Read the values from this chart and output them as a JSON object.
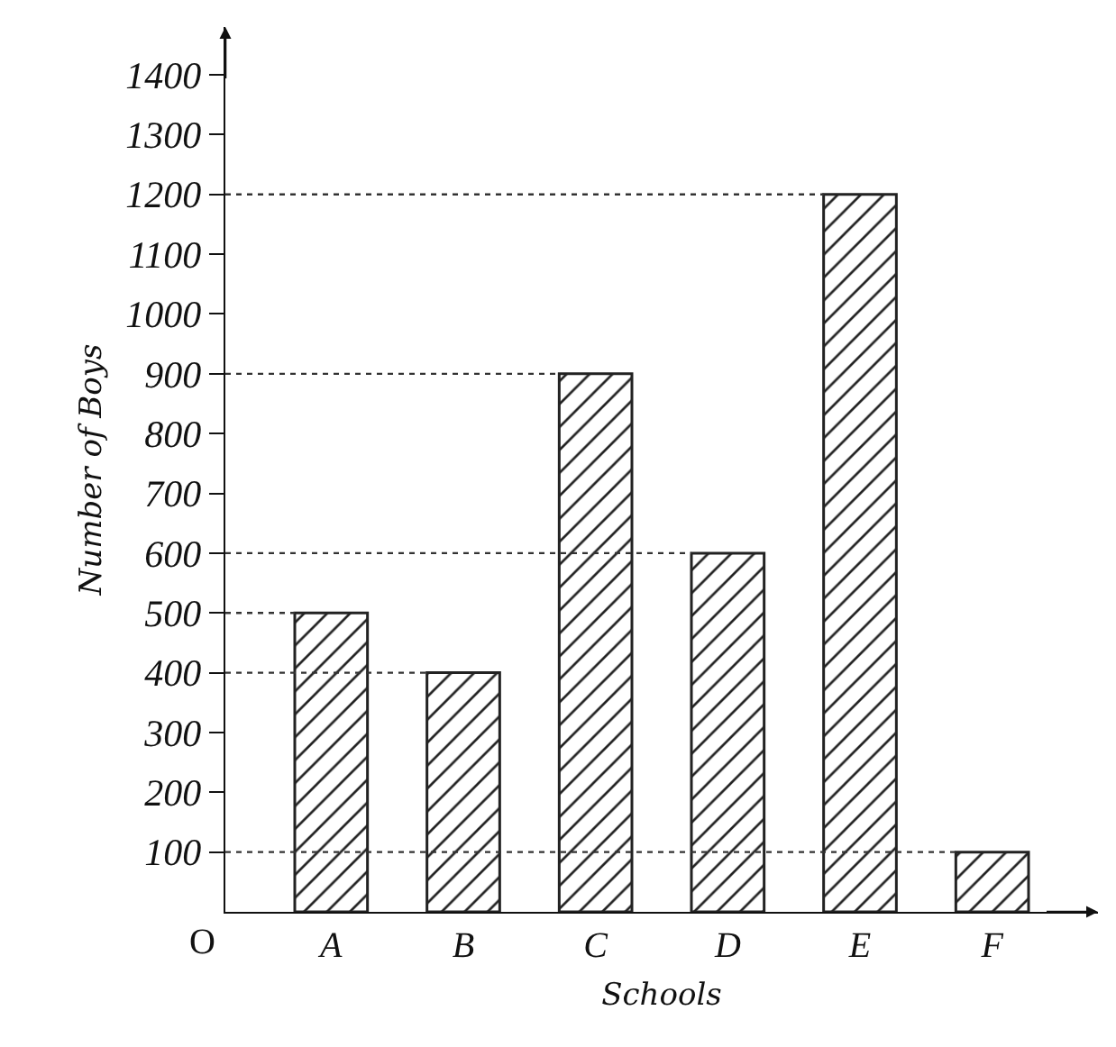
{
  "chart_data": {
    "type": "bar",
    "xlabel": "Schools",
    "ylabel": "Number of Boys",
    "categories": [
      "A",
      "B",
      "C",
      "D",
      "E",
      "F"
    ],
    "values": [
      500,
      400,
      900,
      600,
      1200,
      100
    ],
    "color": "#222222",
    "ylim": [
      0,
      1480
    ],
    "yticks": [
      100,
      200,
      300,
      400,
      500,
      600,
      700,
      800,
      900,
      1000,
      1100,
      1200,
      1300,
      1400
    ],
    "grid": false,
    "ref_lines": [
      {
        "axis": "y",
        "value": 500,
        "line_style": "dotted"
      },
      {
        "axis": "y",
        "value": 400,
        "line_style": "dotted"
      },
      {
        "axis": "y",
        "value": 900,
        "line_style": "dotted"
      },
      {
        "axis": "y",
        "value": 600,
        "line_style": "dotted"
      },
      {
        "axis": "y",
        "value": 1200,
        "line_style": "dotted"
      },
      {
        "axis": "y",
        "value": 100,
        "line_style": "dotted"
      }
    ],
    "annotations": [
      "O"
    ]
  }
}
